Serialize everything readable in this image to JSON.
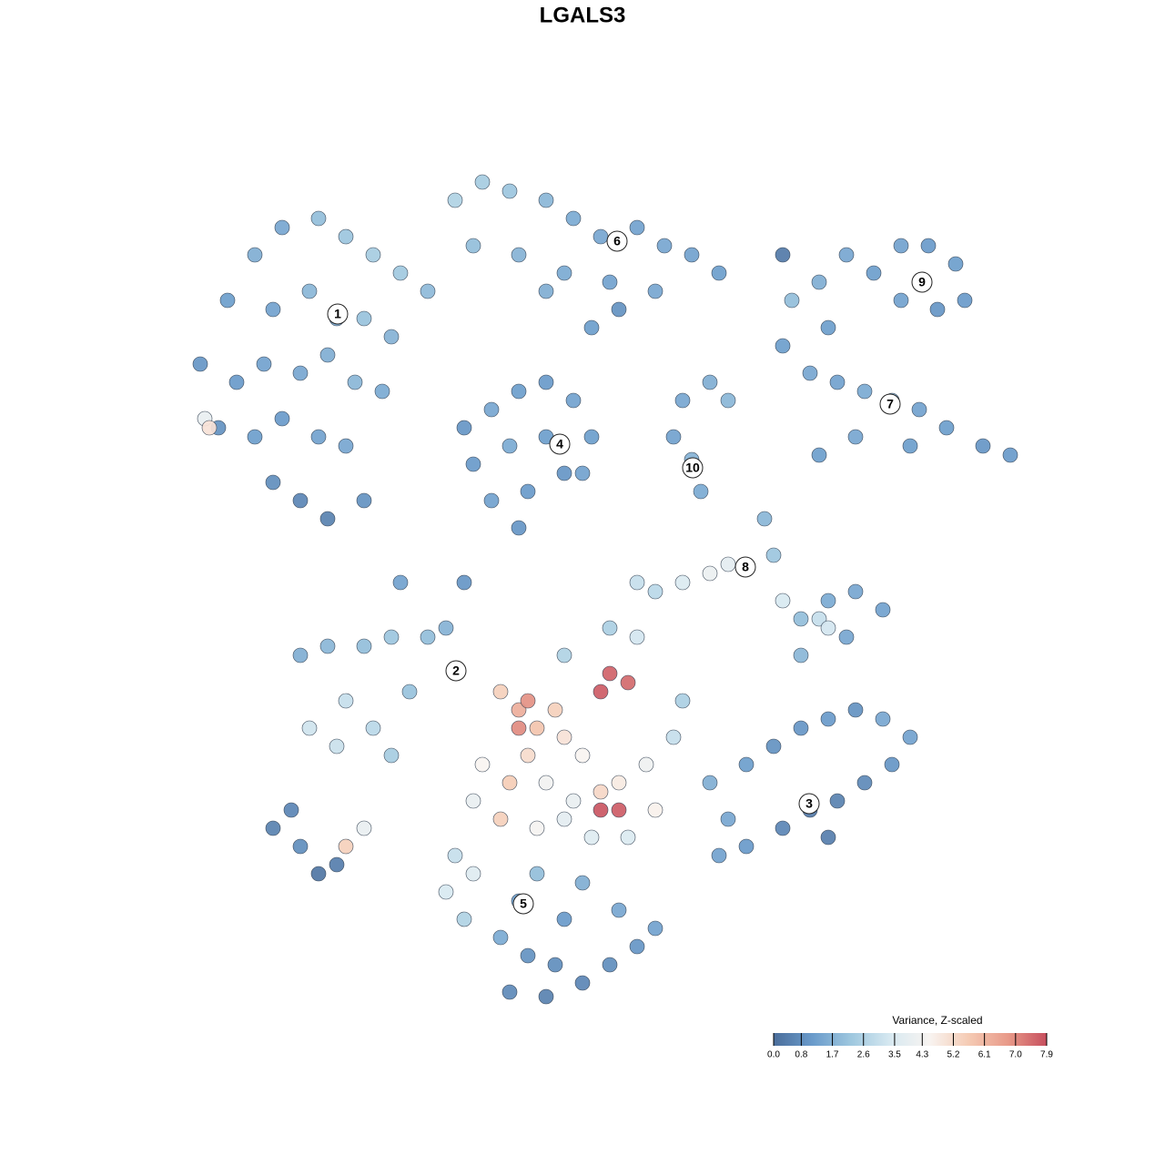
{
  "chart_data": {
    "type": "scatter",
    "title": "LGALS3",
    "xlim": [
      0,
      128
    ],
    "ylim": [
      0,
      128
    ],
    "x": [
      22,
      25,
      28,
      31,
      35,
      38,
      41,
      44,
      47,
      30,
      34,
      37,
      40,
      43,
      26,
      29,
      33,
      36,
      39,
      42,
      24,
      28,
      31,
      35,
      38,
      30,
      33,
      36,
      40,
      22.5,
      23,
      50,
      53,
      56,
      60,
      63,
      66,
      70,
      73,
      76,
      79,
      52,
      57,
      62,
      67,
      72,
      68,
      65,
      60,
      51,
      54,
      57,
      60,
      63,
      65,
      62,
      58,
      54,
      52,
      56,
      60,
      64,
      57,
      75,
      78,
      80,
      76,
      77,
      74,
      87,
      90,
      93,
      96,
      99,
      102,
      105,
      106,
      103,
      99,
      91,
      86,
      89,
      92,
      95,
      98,
      101,
      104,
      108,
      111,
      100,
      94,
      90,
      84,
      85,
      86,
      88,
      91,
      94,
      97,
      93,
      90,
      80,
      78,
      75,
      72,
      70,
      88,
      91,
      33,
      36,
      40,
      43,
      47,
      49,
      38,
      34,
      37,
      41,
      43,
      45,
      55,
      57,
      59,
      62,
      64,
      67,
      66,
      69,
      58,
      56,
      60,
      63,
      66,
      68,
      71,
      72,
      66,
      68,
      53,
      52,
      55,
      59,
      62,
      65,
      69,
      57,
      58,
      61,
      70,
      67,
      62,
      74,
      75,
      78,
      82,
      85,
      88,
      91,
      94,
      97,
      100,
      98,
      95,
      92,
      89,
      86,
      82,
      79,
      80,
      91,
      50,
      52,
      49,
      51,
      55,
      58,
      61,
      64,
      67,
      70,
      72,
      68,
      62,
      57,
      59,
      64,
      56,
      60,
      30,
      33,
      35,
      37,
      38,
      40,
      32,
      86,
      44,
      51
    ],
    "y": [
      88,
      95,
      100,
      103,
      104,
      102,
      100,
      98,
      96,
      94,
      96,
      93,
      93,
      91,
      86,
      88,
      87,
      89,
      86,
      85,
      81,
      80,
      82,
      80,
      79,
      75,
      73,
      71,
      73,
      82,
      81,
      106,
      108,
      107,
      106,
      104,
      102,
      103,
      101,
      100,
      98,
      101,
      100,
      98,
      97,
      96,
      94,
      92,
      96,
      81,
      83,
      85,
      86,
      84,
      80,
      76,
      74,
      73,
      77,
      79,
      80,
      76,
      70,
      84,
      86,
      84,
      77.5,
      74,
      80,
      95,
      97,
      100,
      98,
      101,
      101,
      99,
      95,
      94,
      95,
      92,
      90,
      87,
      86,
      85,
      84,
      83,
      81,
      79,
      78,
      79,
      80,
      78,
      71,
      67,
      62,
      60,
      62,
      63,
      61,
      58,
      60,
      66,
      65,
      64,
      63,
      64,
      56,
      59,
      56,
      57,
      57,
      58,
      58,
      59,
      51,
      48,
      46,
      48,
      45,
      52,
      52,
      50,
      48,
      47,
      45,
      54,
      52,
      53,
      45,
      42,
      42,
      40,
      41,
      42,
      44,
      39,
      39,
      39,
      44,
      40,
      38,
      37,
      38,
      36,
      36,
      48,
      51,
      50,
      58,
      59,
      56,
      47,
      51,
      42,
      44,
      46,
      48,
      49,
      50,
      49,
      47,
      44,
      42,
      40,
      39,
      37,
      35,
      34,
      38,
      36,
      34,
      32,
      30,
      27,
      25,
      23,
      22,
      20,
      22,
      24,
      26,
      28,
      27,
      29,
      32,
      31,
      19,
      18.5,
      37,
      35,
      32,
      33,
      35,
      37,
      39,
      100,
      64,
      64
    ],
    "values": [
      1.0,
      1.2,
      1.6,
      1.4,
      2.0,
      2.2,
      2.4,
      2.3,
      1.9,
      1.3,
      1.8,
      1.5,
      2.1,
      1.7,
      1.1,
      1.3,
      1.4,
      1.6,
      1.8,
      1.5,
      0.9,
      1.2,
      1.1,
      1.3,
      1.4,
      0.8,
      0.6,
      0.5,
      0.9,
      4.0,
      5.0,
      2.6,
      2.4,
      2.2,
      1.8,
      1.5,
      1.4,
      1.3,
      1.4,
      1.3,
      1.2,
      2.0,
      1.7,
      1.5,
      1.3,
      1.4,
      0.9,
      1.2,
      1.6,
      1.0,
      1.4,
      1.2,
      1.1,
      1.3,
      1.2,
      1.0,
      1.1,
      1.3,
      1.1,
      1.5,
      1.2,
      1.3,
      1.0,
      1.4,
      1.6,
      1.8,
      1.7,
      1.5,
      1.3,
      2.0,
      1.6,
      1.4,
      1.2,
      1.3,
      1.1,
      1.2,
      1.1,
      1.0,
      1.3,
      1.2,
      1.2,
      1.4,
      1.3,
      1.5,
      1.7,
      1.3,
      1.2,
      1.0,
      1.1,
      1.2,
      1.4,
      1.2,
      1.8,
      2.2,
      3.4,
      2.0,
      1.5,
      1.4,
      1.3,
      1.4,
      3.0,
      3.8,
      4.1,
      3.5,
      2.8,
      3.0,
      1.8,
      3.3,
      1.6,
      1.8,
      2.0,
      2.2,
      2.0,
      1.7,
      3.0,
      3.2,
      3.1,
      2.8,
      2.4,
      2.1,
      5.5,
      6.3,
      5.8,
      5.0,
      4.5,
      7.6,
      7.7,
      7.5,
      5.2,
      5.6,
      4.3,
      4.0,
      5.3,
      4.8,
      4.2,
      4.6,
      7.8,
      7.7,
      4.5,
      4.0,
      5.5,
      4.4,
      3.8,
      3.6,
      3.5,
      7.0,
      6.9,
      5.5,
      3.3,
      2.5,
      2.6,
      3.0,
      2.5,
      1.6,
      1.2,
      0.9,
      1.0,
      1.1,
      0.9,
      1.4,
      1.3,
      1.0,
      0.7,
      0.5,
      0.3,
      0.6,
      1.1,
      1.3,
      1.4,
      0.4,
      3.0,
      3.6,
      3.4,
      2.6,
      1.5,
      0.9,
      0.8,
      0.6,
      0.8,
      1.0,
      1.3,
      1.4,
      1.1,
      1.2,
      2.0,
      1.6,
      0.7,
      0.5,
      0.5,
      0.8,
      0.2,
      0.4,
      5.5,
      4.0,
      0.6,
      0.3,
      1.3,
      1.0
    ],
    "annotations": [
      {
        "text": "1",
        "x": 37.1,
        "y": 93.5
      },
      {
        "text": "2",
        "x": 50.1,
        "y": 54.3
      },
      {
        "text": "3",
        "x": 88.9,
        "y": 39.7
      },
      {
        "text": "4",
        "x": 61.5,
        "y": 79.2
      },
      {
        "text": "5",
        "x": 57.5,
        "y": 28.7
      },
      {
        "text": "6",
        "x": 67.8,
        "y": 101.5
      },
      {
        "text": "7",
        "x": 97.8,
        "y": 83.6
      },
      {
        "text": "8",
        "x": 81.9,
        "y": 65.7
      },
      {
        "text": "9",
        "x": 101.3,
        "y": 97
      },
      {
        "text": "10",
        "x": 76.1,
        "y": 76.6
      }
    ],
    "colorbar_title": "Variance, Z-scaled",
    "colorbar_ticks": [
      {
        "value": 0,
        "label": "0.0"
      },
      0.8,
      1.7,
      2.6,
      3.5,
      4.3,
      5.2,
      6.1,
      {
        "value": 7,
        "label": "7.0"
      },
      7.9
    ],
    "colormap": [
      "#4b6e9b",
      "#6a9bcb",
      "#9fc8df",
      "#d8e9f1",
      "#f8f4f1",
      "#f5cbb4",
      "#e89a89",
      "#c74f5e"
    ]
  }
}
